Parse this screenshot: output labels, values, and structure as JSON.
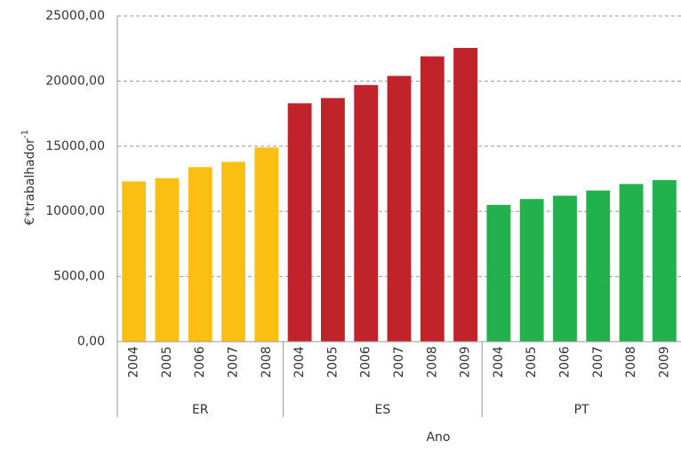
{
  "chart_data": {
    "type": "bar",
    "y_label": "€*trabalhador",
    "y_label_sup": "-1",
    "x_label": "Ano",
    "groups": [
      {
        "name": "ER",
        "color": "#fbbf14",
        "categories": [
          "2004",
          "2005",
          "2006",
          "2007",
          "2008"
        ],
        "values": [
          12300,
          12550,
          13400,
          13800,
          14900
        ]
      },
      {
        "name": "ES",
        "color": "#c1232b",
        "categories": [
          "2004",
          "2005",
          "2006",
          "2007",
          "2008",
          "2009"
        ],
        "values": [
          18300,
          18700,
          19700,
          20400,
          21900,
          22550
        ]
      },
      {
        "name": "PT",
        "color": "#22b14c",
        "categories": [
          "2004",
          "2005",
          "2006",
          "2007",
          "2008",
          "2009"
        ],
        "values": [
          10500,
          10950,
          11200,
          11600,
          12100,
          12400
        ]
      }
    ],
    "ylim": [
      0,
      25000
    ],
    "yticks": [
      {
        "value": 0,
        "label": "0,00"
      },
      {
        "value": 5000,
        "label": "5000,00"
      },
      {
        "value": 10000,
        "label": "10000,00"
      },
      {
        "value": 15000,
        "label": "15000,00"
      },
      {
        "value": 20000,
        "label": "20000,00"
      },
      {
        "value": 25000,
        "label": "25000,00"
      }
    ],
    "grid": true
  }
}
